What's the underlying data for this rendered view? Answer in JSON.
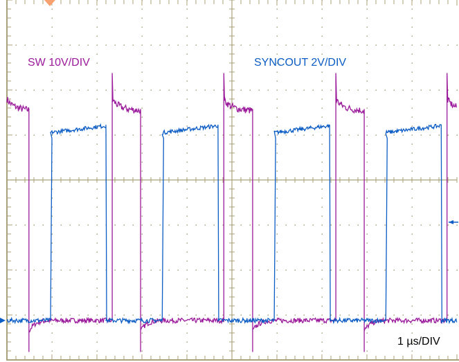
{
  "chart_data": {
    "type": "line",
    "title": "",
    "xlabel": "",
    "ylabel": "",
    "x_units": "µs",
    "grid": true,
    "divisions": {
      "horizontal": 10,
      "vertical": 8
    },
    "xlim": [
      0,
      10
    ],
    "timebase_label": "1 µs/DIV",
    "series": [
      {
        "name": "SW 10V/DIV",
        "color": "#9b1a9b",
        "volts_per_div": 10,
        "high_level_v": 47,
        "low_level_v": 0,
        "rise_spike_v": 55,
        "fall_undershoot_v": -7,
        "falling_edges_us": [
          0.49,
          2.97,
          5.46,
          7.94
        ],
        "rising_edges_us": [
          2.34,
          4.82,
          7.31,
          9.78
        ]
      },
      {
        "name": "SYNCOUT 2V/DIV",
        "color": "#0b5cc4",
        "volts_per_div": 2,
        "high_level_v": 8.7,
        "low_level_v": 0,
        "rising_edges_us": [
          0.97,
          3.45,
          5.94,
          8.42
        ],
        "falling_edges_us": [
          2.2,
          4.69,
          7.17,
          9.65
        ]
      }
    ],
    "annotations": [
      "SW 10V/DIV",
      "SYNCOUT 2V/DIV",
      "1 µs/DIV"
    ],
    "markers": {
      "trigger_color": "#f7a070",
      "channel_marker_color": "#0b5cc4"
    }
  }
}
